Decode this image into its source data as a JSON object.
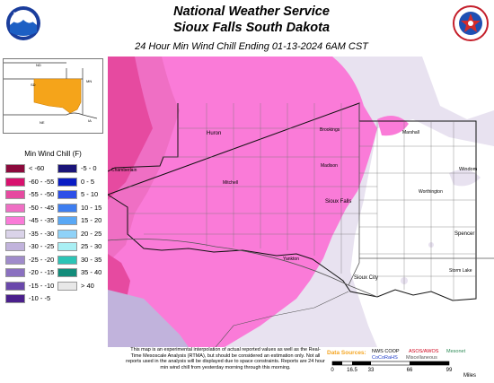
{
  "header": {
    "title_line1": "National Weather Service",
    "title_line2": "Sioux Falls South Dakota",
    "subtitle": "24 Hour Min Wind Chill Ending 01-13-2024 6AM CST"
  },
  "logos": {
    "noaa_text": "NOAA",
    "nws_icon": "nws-seal-icon"
  },
  "inset": {
    "labels": [
      "ND",
      "SD",
      "MN",
      "NE",
      "IA"
    ]
  },
  "legend": {
    "title": "Min Wind Chill (F)",
    "items": [
      {
        "label": "< -60",
        "color": "#8b0a3c"
      },
      {
        "label": "-60 - -55",
        "color": "#d8116e"
      },
      {
        "label": "-55 - -50",
        "color": "#e64aa0"
      },
      {
        "label": "-50 - -45",
        "color": "#ef6fc4"
      },
      {
        "label": "-45 - -35",
        "color": "#fa7bd8"
      },
      {
        "label": "-35 - -30",
        "color": "#dad3e9"
      },
      {
        "label": "-30 - -25",
        "color": "#c1b3dc"
      },
      {
        "label": "-25 - -20",
        "color": "#a08ccb"
      },
      {
        "label": "-20 - -15",
        "color": "#8a70c0"
      },
      {
        "label": "-15 - -10",
        "color": "#6a48ab"
      },
      {
        "label": "-10 - -5",
        "color": "#4a1f8c"
      },
      {
        "label": "-5 - 0",
        "color": "#1a1478"
      },
      {
        "label": "0 - 5",
        "color": "#0a1cc4"
      },
      {
        "label": "5 - 10",
        "color": "#2d4fe8"
      },
      {
        "label": "10 - 15",
        "color": "#3e7ef0"
      },
      {
        "label": "15 - 20",
        "color": "#59a8f5"
      },
      {
        "label": "20 - 25",
        "color": "#8fd2f8"
      },
      {
        "label": "25 - 30",
        "color": "#a9eff4"
      },
      {
        "label": "30 - 35",
        "color": "#2cc4b6"
      },
      {
        "label": "35 - 40",
        "color": "#128c7a"
      },
      {
        "label": "> 40",
        "color": "#e8e8e8"
      }
    ]
  },
  "map_labels": [
    "Huron",
    "Brookings",
    "Marshall",
    "Mitchell",
    "Sioux Falls",
    "Worthington",
    "Windom",
    "Spencer",
    "Sioux City",
    "Storm Lake",
    "Chamberlain",
    "Yankton",
    "Madison"
  ],
  "footer": {
    "disclaimer": "This map is an experimental interpolation of actual reported values as well as the Real-Time Mesoscale Analysis (RTMA), but should be considered an estimation only. Not all reports used in the analysis will be displayed due to space constraints. Reports are 24 hour min wind chill from yesterday morning through this morning.",
    "data_sources_label": "Data Sources:",
    "sources": [
      {
        "label": "NWS COOP",
        "color": "#000000"
      },
      {
        "label": "ASOS/AWOS",
        "color": "#d0021b"
      },
      {
        "label": "Mesonet",
        "color": "#2e8b57"
      },
      {
        "label": "CoCoRaHS",
        "color": "#1e3cc8"
      },
      {
        "label": "Miscellaneous",
        "color": "#555555"
      }
    ],
    "scale_ticks": [
      "0",
      "16.5",
      "33",
      "66",
      "99"
    ],
    "scale_unit": "Miles"
  }
}
